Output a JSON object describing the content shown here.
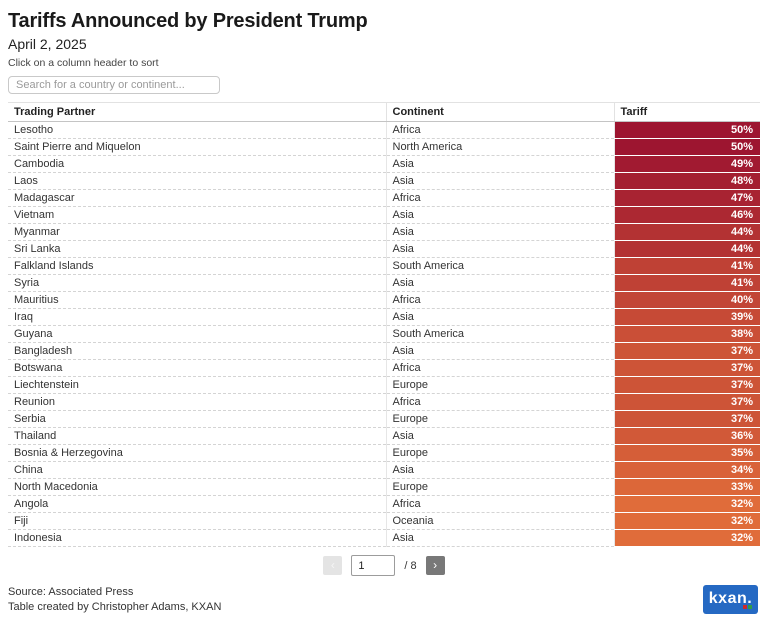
{
  "header": {
    "title": "Tariffs Announced by President Trump",
    "date": "April 2, 2025",
    "hint": "Click on a column header to sort"
  },
  "search": {
    "placeholder": "Search for a country or continent..."
  },
  "table": {
    "columns": [
      "Trading Partner",
      "Continent",
      "Tariff"
    ],
    "rows": [
      {
        "partner": "Lesotho",
        "continent": "Africa",
        "tariff": "50%",
        "color": "#9d1530"
      },
      {
        "partner": "Saint Pierre and Miquelon",
        "continent": "North America",
        "tariff": "50%",
        "color": "#9d1530"
      },
      {
        "partner": "Cambodia",
        "continent": "Asia",
        "tariff": "49%",
        "color": "#a11a31"
      },
      {
        "partner": "Laos",
        "continent": "Asia",
        "tariff": "48%",
        "color": "#a41f31"
      },
      {
        "partner": "Madagascar",
        "continent": "Africa",
        "tariff": "47%",
        "color": "#a82332"
      },
      {
        "partner": "Vietnam",
        "continent": "Asia",
        "tariff": "46%",
        "color": "#ac2832"
      },
      {
        "partner": "Myanmar",
        "continent": "Asia",
        "tariff": "44%",
        "color": "#b33233"
      },
      {
        "partner": "Sri Lanka",
        "continent": "Asia",
        "tariff": "44%",
        "color": "#b33233"
      },
      {
        "partner": "Falkland Islands",
        "continent": "South America",
        "tariff": "41%",
        "color": "#bf4135"
      },
      {
        "partner": "Syria",
        "continent": "Asia",
        "tariff": "41%",
        "color": "#bf4135"
      },
      {
        "partner": "Mauritius",
        "continent": "Africa",
        "tariff": "40%",
        "color": "#c24536"
      },
      {
        "partner": "Iraq",
        "continent": "Asia",
        "tariff": "39%",
        "color": "#c64a36"
      },
      {
        "partner": "Guyana",
        "continent": "South America",
        "tariff": "38%",
        "color": "#ca4f37"
      },
      {
        "partner": "Bangladesh",
        "continent": "Asia",
        "tariff": "37%",
        "color": "#cd5437"
      },
      {
        "partner": "Botswana",
        "continent": "Africa",
        "tariff": "37%",
        "color": "#cd5437"
      },
      {
        "partner": "Liechtenstein",
        "continent": "Europe",
        "tariff": "37%",
        "color": "#cd5437"
      },
      {
        "partner": "Reunion",
        "continent": "Africa",
        "tariff": "37%",
        "color": "#cd5437"
      },
      {
        "partner": "Serbia",
        "continent": "Europe",
        "tariff": "37%",
        "color": "#cd5437"
      },
      {
        "partner": "Thailand",
        "continent": "Asia",
        "tariff": "36%",
        "color": "#d15938"
      },
      {
        "partner": "Bosnia & Herzegovina",
        "continent": "Europe",
        "tariff": "35%",
        "color": "#d55e38"
      },
      {
        "partner": "China",
        "continent": "Asia",
        "tariff": "34%",
        "color": "#d96239"
      },
      {
        "partner": "North Macedonia",
        "continent": "Europe",
        "tariff": "33%",
        "color": "#dc6739"
      },
      {
        "partner": "Angola",
        "continent": "Africa",
        "tariff": "32%",
        "color": "#e06c3a"
      },
      {
        "partner": "Fiji",
        "continent": "Oceania",
        "tariff": "32%",
        "color": "#e06c3a"
      },
      {
        "partner": "Indonesia",
        "continent": "Asia",
        "tariff": "32%",
        "color": "#e06c3a"
      }
    ]
  },
  "pagination": {
    "prev_label": "‹",
    "next_label": "›",
    "current_page": "1",
    "total_label": "/ 8"
  },
  "footer": {
    "source": "Source: Associated Press",
    "credit": "Table created by Christopher Adams, KXAN",
    "logo_text": "kxan."
  },
  "colors": {
    "tariff_scale_max": "#9d1530",
    "tariff_scale_min": "#e06c3a",
    "logo_blue": "#2569c3",
    "logo_dot_red": "#cc2b2b",
    "logo_dot_green": "#2f9e44"
  }
}
